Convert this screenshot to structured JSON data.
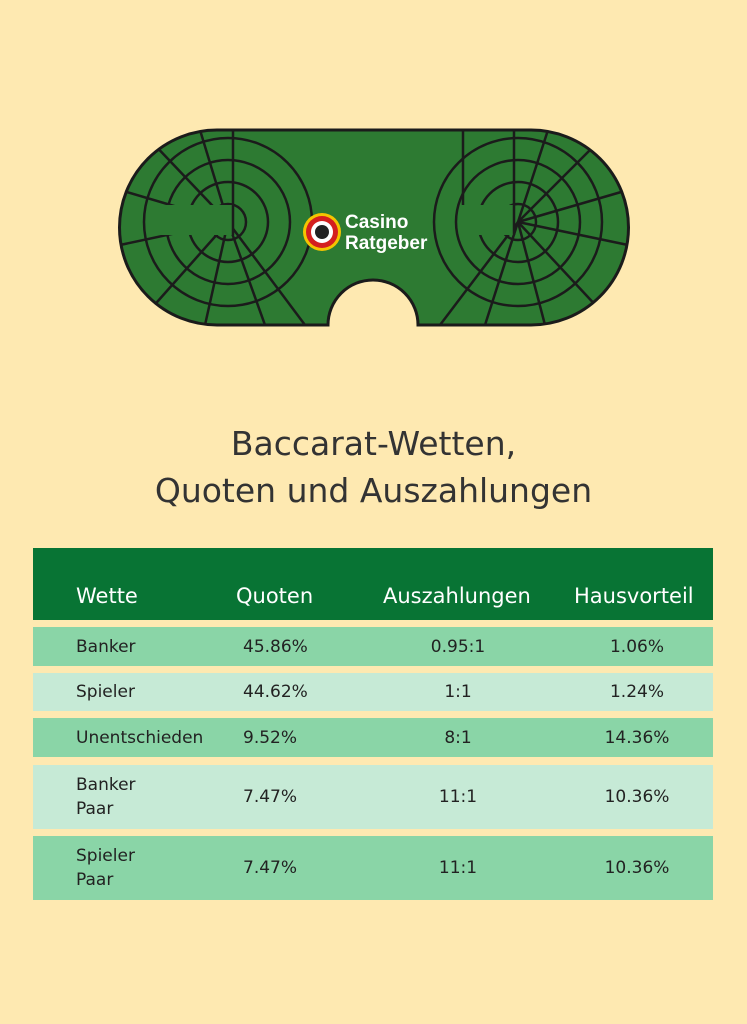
{
  "logo": {
    "line1": "Casino",
    "line2": "Ratgeber"
  },
  "title": [
    "Baccarat-Wetten,",
    "Quoten und Auszahlungen"
  ],
  "table": {
    "header": [
      "Wette",
      "Quoten",
      "Auszahlungen",
      "Hausvorteil"
    ],
    "rows": [
      [
        "Banker",
        "45.86%",
        "0.95:1",
        "1.06%"
      ],
      [
        "Spieler",
        "44.62%",
        "1:1",
        "1.24%"
      ],
      [
        "Unentschieden",
        "9.52%",
        "8:1",
        "14.36%"
      ],
      [
        "Banker\nPaar",
        "7.47%",
        "11:1",
        "10.36%"
      ],
      [
        "Spieler\nPaar",
        "7.47%",
        "11:1",
        "10.36%"
      ]
    ]
  }
}
